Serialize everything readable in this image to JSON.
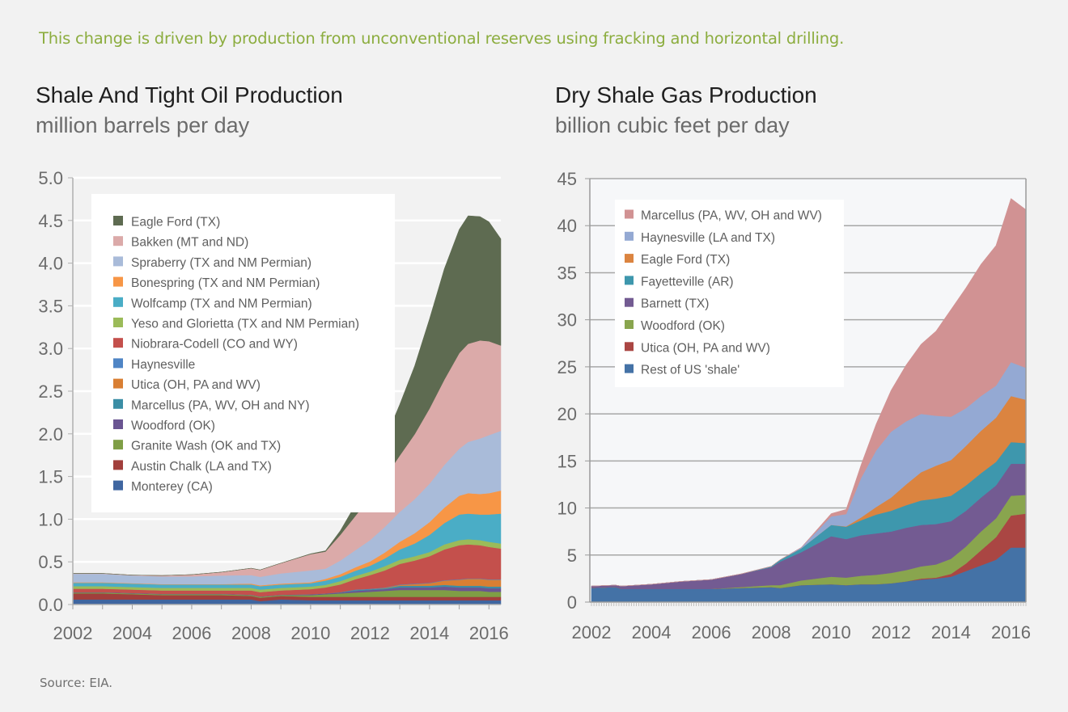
{
  "headline": "This change is driven by production from unconventional reserves using fracking and horizontal drilling.",
  "source": "Source: EIA.",
  "chart_data": [
    {
      "type": "area",
      "stacked": true,
      "title": "Shale And Tight Oil Production",
      "subtitle": "million barrels per day",
      "xlabel": "",
      "ylabel": "",
      "xlim": [
        2002,
        2016.4
      ],
      "ylim": [
        0,
        5.0
      ],
      "yticks": [
        "0.0",
        "0.5",
        "1.0",
        "1.5",
        "2.0",
        "2.5",
        "3.0",
        "3.5",
        "4.0",
        "4.5",
        "5.0"
      ],
      "xticks": [
        "2002",
        "2004",
        "2006",
        "2008",
        "2010",
        "2012",
        "2014",
        "2016"
      ],
      "grid": true,
      "legend_position": "top-left",
      "x": [
        2002,
        2003,
        2004,
        2005,
        2006,
        2007,
        2008,
        2008.3,
        2009,
        2010,
        2010.5,
        2011,
        2011.5,
        2012,
        2012.5,
        2013,
        2013.5,
        2014,
        2014.5,
        2015,
        2015.3,
        2015.7,
        2016,
        2016.4
      ],
      "series": [
        {
          "name": "Monterey (CA)",
          "color": "#3f66a0",
          "values": [
            0.06,
            0.06,
            0.06,
            0.06,
            0.06,
            0.06,
            0.06,
            0.04,
            0.06,
            0.05,
            0.05,
            0.05,
            0.05,
            0.05,
            0.05,
            0.05,
            0.05,
            0.05,
            0.05,
            0.05,
            0.05,
            0.05,
            0.05,
            0.05
          ]
        },
        {
          "name": "Austin Chalk (LA and TX)",
          "color": "#a13f3c",
          "values": [
            0.07,
            0.07,
            0.06,
            0.05,
            0.05,
            0.05,
            0.04,
            0.04,
            0.04,
            0.04,
            0.04,
            0.04,
            0.04,
            0.04,
            0.04,
            0.04,
            0.04,
            0.04,
            0.04,
            0.04,
            0.04,
            0.04,
            0.04,
            0.04
          ]
        },
        {
          "name": "Granite Wash (OK and TX)",
          "color": "#7f9e45",
          "values": [
            0.01,
            0.01,
            0.01,
            0.01,
            0.01,
            0.01,
            0.01,
            0.01,
            0.01,
            0.02,
            0.03,
            0.04,
            0.05,
            0.06,
            0.07,
            0.08,
            0.08,
            0.08,
            0.08,
            0.07,
            0.07,
            0.07,
            0.06,
            0.06
          ]
        },
        {
          "name": "Woodford (OK)",
          "color": "#6a5592",
          "values": [
            0.005,
            0.005,
            0.005,
            0.005,
            0.005,
            0.005,
            0.005,
            0.005,
            0.005,
            0.01,
            0.01,
            0.01,
            0.02,
            0.02,
            0.02,
            0.03,
            0.03,
            0.03,
            0.04,
            0.04,
            0.04,
            0.04,
            0.04,
            0.04
          ]
        },
        {
          "name": "Marcellus (PA, WV, OH and NY)",
          "color": "#3b8ea5",
          "values": [
            0,
            0,
            0,
            0,
            0,
            0,
            0,
            0,
            0,
            0,
            0,
            0.005,
            0.01,
            0.01,
            0.01,
            0.02,
            0.02,
            0.02,
            0.02,
            0.02,
            0.02,
            0.02,
            0.02,
            0.02
          ]
        },
        {
          "name": "Utica (OH, PA and WV)",
          "color": "#d97f33",
          "values": [
            0,
            0,
            0,
            0,
            0,
            0,
            0,
            0,
            0,
            0,
            0,
            0,
            0,
            0,
            0.005,
            0.01,
            0.02,
            0.03,
            0.05,
            0.07,
            0.08,
            0.08,
            0.08,
            0.08
          ]
        },
        {
          "name": "Haynesville",
          "color": "#4f85c5",
          "values": [
            0,
            0,
            0,
            0,
            0,
            0,
            0,
            0,
            0,
            0,
            0,
            0,
            0.005,
            0.005,
            0.005,
            0.005,
            0.005,
            0.005,
            0.005,
            0.005,
            0.005,
            0.005,
            0.005,
            0.005
          ]
        },
        {
          "name": "Niobrara-Codell (CO and WY)",
          "color": "#c4504c",
          "values": [
            0.04,
            0.04,
            0.04,
            0.04,
            0.04,
            0.04,
            0.05,
            0.05,
            0.05,
            0.06,
            0.07,
            0.09,
            0.12,
            0.16,
            0.2,
            0.24,
            0.27,
            0.31,
            0.36,
            0.4,
            0.4,
            0.39,
            0.38,
            0.36
          ]
        },
        {
          "name": "Yeso and Glorietta (TX and NM Permian)",
          "color": "#9bbb59",
          "values": [
            0.03,
            0.03,
            0.03,
            0.03,
            0.03,
            0.03,
            0.03,
            0.03,
            0.03,
            0.03,
            0.03,
            0.04,
            0.04,
            0.04,
            0.05,
            0.05,
            0.05,
            0.05,
            0.06,
            0.06,
            0.06,
            0.06,
            0.06,
            0.06
          ]
        },
        {
          "name": "Wolfcamp (TX and NM Permian)",
          "color": "#4aadc6",
          "values": [
            0.04,
            0.04,
            0.04,
            0.04,
            0.04,
            0.04,
            0.04,
            0.04,
            0.04,
            0.04,
            0.05,
            0.05,
            0.06,
            0.07,
            0.09,
            0.12,
            0.15,
            0.2,
            0.25,
            0.3,
            0.3,
            0.3,
            0.32,
            0.35
          ]
        },
        {
          "name": "Bonespring (TX and NM Permian)",
          "color": "#f79646",
          "values": [
            0.005,
            0.005,
            0.005,
            0.005,
            0.005,
            0.005,
            0.01,
            0.01,
            0.01,
            0.01,
            0.02,
            0.03,
            0.04,
            0.05,
            0.07,
            0.09,
            0.12,
            0.15,
            0.18,
            0.22,
            0.24,
            0.24,
            0.25,
            0.27
          ]
        },
        {
          "name": "Spraberry (TX and NM Permian)",
          "color": "#a9bbd9",
          "values": [
            0.1,
            0.1,
            0.09,
            0.09,
            0.09,
            0.1,
            0.1,
            0.1,
            0.12,
            0.14,
            0.12,
            0.16,
            0.2,
            0.25,
            0.3,
            0.35,
            0.4,
            0.45,
            0.5,
            0.55,
            0.6,
            0.65,
            0.68,
            0.7
          ]
        },
        {
          "name": "Bakken (MT and ND)",
          "color": "#dbaaa9",
          "values": [
            0.005,
            0.005,
            0.005,
            0.01,
            0.02,
            0.04,
            0.08,
            0.08,
            0.12,
            0.19,
            0.2,
            0.3,
            0.4,
            0.5,
            0.58,
            0.66,
            0.76,
            0.88,
            1.0,
            1.12,
            1.15,
            1.15,
            1.1,
            1.0
          ]
        },
        {
          "name": "Eagle Ford (TX)",
          "color": "#5e6b51",
          "values": [
            0,
            0,
            0,
            0,
            0,
            0,
            0,
            0,
            0,
            0.005,
            0.01,
            0.05,
            0.13,
            0.3,
            0.44,
            0.6,
            0.8,
            1.05,
            1.3,
            1.45,
            1.5,
            1.45,
            1.4,
            1.25
          ]
        }
      ]
    },
    {
      "type": "area",
      "stacked": true,
      "title": "Dry Shale Gas Production",
      "subtitle": "billion cubic feet per day",
      "xlabel": "",
      "ylabel": "",
      "xlim": [
        2002,
        2016.5
      ],
      "ylim": [
        0,
        45
      ],
      "yticks": [
        "0",
        "5",
        "10",
        "15",
        "20",
        "25",
        "30",
        "35",
        "40",
        "45"
      ],
      "xticks": [
        "2002",
        "2004",
        "2006",
        "2008",
        "2010",
        "2012",
        "2014",
        "2016"
      ],
      "grid": true,
      "legend_position": "top-left",
      "x": [
        2002,
        2002.8,
        2003,
        2004,
        2005,
        2006,
        2007,
        2008,
        2008.3,
        2009,
        2010,
        2010.5,
        2011,
        2011.5,
        2012,
        2012.5,
        2013,
        2013.5,
        2014,
        2014.5,
        2015,
        2015.5,
        2016,
        2016.5
      ],
      "series": [
        {
          "name": "Rest of US 'shale'",
          "color": "#4472a6",
          "values": [
            1.5,
            1.6,
            1.4,
            1.4,
            1.4,
            1.4,
            1.5,
            1.6,
            1.5,
            1.8,
            1.9,
            1.8,
            1.9,
            1.9,
            2.0,
            2.2,
            2.4,
            2.5,
            2.7,
            3.3,
            3.9,
            4.5,
            5.8,
            5.8
          ]
        },
        {
          "name": "Utica (OH, PA and WV)",
          "color": "#aa4643",
          "values": [
            0,
            0,
            0,
            0,
            0,
            0,
            0,
            0,
            0,
            0,
            0,
            0,
            0,
            0,
            0,
            0,
            0.1,
            0.1,
            0.3,
            0.8,
            1.6,
            2.4,
            3.4,
            3.6
          ]
        },
        {
          "name": "Woodford (OK)",
          "color": "#89a54e",
          "values": [
            0,
            0,
            0,
            0,
            0,
            0,
            0.1,
            0.2,
            0.3,
            0.5,
            0.8,
            0.8,
            0.9,
            1.0,
            1.1,
            1.2,
            1.3,
            1.4,
            1.6,
            1.8,
            2.0,
            2.0,
            2.1,
            2.0
          ]
        },
        {
          "name": "Barnett (TX)",
          "color": "#735b92",
          "values": [
            0.2,
            0.2,
            0.3,
            0.5,
            0.8,
            1.0,
            1.4,
            1.9,
            2.5,
            3.0,
            4.3,
            4.1,
            4.3,
            4.4,
            4.4,
            4.5,
            4.4,
            4.3,
            4.0,
            3.8,
            3.6,
            3.5,
            3.4,
            3.3
          ]
        },
        {
          "name": "Fayetteville (AR)",
          "color": "#3e97ad",
          "values": [
            0,
            0,
            0,
            0,
            0,
            0,
            0,
            0.1,
            0.2,
            0.4,
            1.2,
            1.3,
            1.6,
            2.0,
            2.2,
            2.4,
            2.6,
            2.7,
            2.7,
            2.7,
            2.6,
            2.5,
            2.3,
            2.2
          ]
        },
        {
          "name": "Eagle Ford (TX)",
          "color": "#db8440",
          "values": [
            0,
            0,
            0,
            0,
            0,
            0,
            0,
            0,
            0,
            0,
            0,
            0.05,
            0.3,
            0.8,
            1.4,
            2.2,
            3.0,
            3.5,
            3.8,
            4.2,
            4.5,
            4.7,
            4.9,
            4.6
          ]
        },
        {
          "name": "Haynesville (LA and TX)",
          "color": "#94a9d3",
          "values": [
            0,
            0,
            0,
            0,
            0,
            0,
            0,
            0,
            0,
            0.1,
            0.9,
            1.3,
            4.2,
            6.0,
            7.0,
            6.7,
            6.2,
            5.3,
            4.6,
            4.0,
            3.7,
            3.4,
            3.6,
            3.4
          ]
        },
        {
          "name": "Marcellus (PA, WV, OH and WV)",
          "color": "#d19293",
          "values": [
            0,
            0,
            0,
            0,
            0,
            0,
            0,
            0,
            0,
            0,
            0.3,
            0.5,
            1.4,
            2.8,
            4.4,
            6.0,
            7.4,
            9.0,
            11.4,
            12.8,
            14.0,
            14.9,
            17.4,
            16.8
          ]
        }
      ]
    }
  ]
}
